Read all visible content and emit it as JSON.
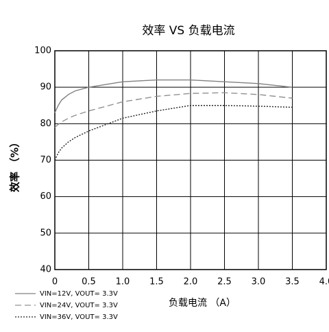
{
  "chart_data": {
    "type": "line",
    "title": "效率 VS 负载电流",
    "x_label": "负载电流 （A）",
    "y_label": "效率 （%）",
    "x": [
      0,
      0.05,
      0.1,
      0.2,
      0.3,
      0.5,
      1,
      1.5,
      2,
      2.5,
      3,
      3.5
    ],
    "series": [
      {
        "name": "VIN=12V, VOUT= 3.3V",
        "color": "#808080",
        "dash": "solid",
        "values": [
          83,
          85,
          86.5,
          88,
          89,
          90,
          91.5,
          92,
          92,
          91.5,
          91,
          90
        ]
      },
      {
        "name": "VIN=24V, VOUT= 3.3V",
        "color": "#909090",
        "dash": "dashed",
        "values": [
          79,
          79.8,
          80.5,
          81.5,
          82.3,
          83.5,
          86,
          87.5,
          88.3,
          88.5,
          88,
          87
        ]
      },
      {
        "name": "VIN=36V, VOUT= 3.3V",
        "color": "#202020",
        "dash": "dotted",
        "values": [
          70,
          72,
          73.3,
          75,
          76.2,
          78,
          81.5,
          83.5,
          85,
          85,
          84.8,
          84.5
        ]
      }
    ],
    "xlim": [
      0,
      4
    ],
    "xticks": [
      0,
      0.5,
      {
        "value": 1,
        "label": "1.0"
      },
      1.5,
      {
        "value": 2,
        "label": "2.0"
      },
      2.5,
      {
        "value": 3,
        "label": "3.0"
      },
      3.5,
      {
        "value": 4,
        "label": "4.0"
      }
    ],
    "ylim": [
      40,
      100
    ],
    "yticks": [
      40,
      50,
      60,
      70,
      80,
      90,
      100
    ],
    "grid": true
  }
}
